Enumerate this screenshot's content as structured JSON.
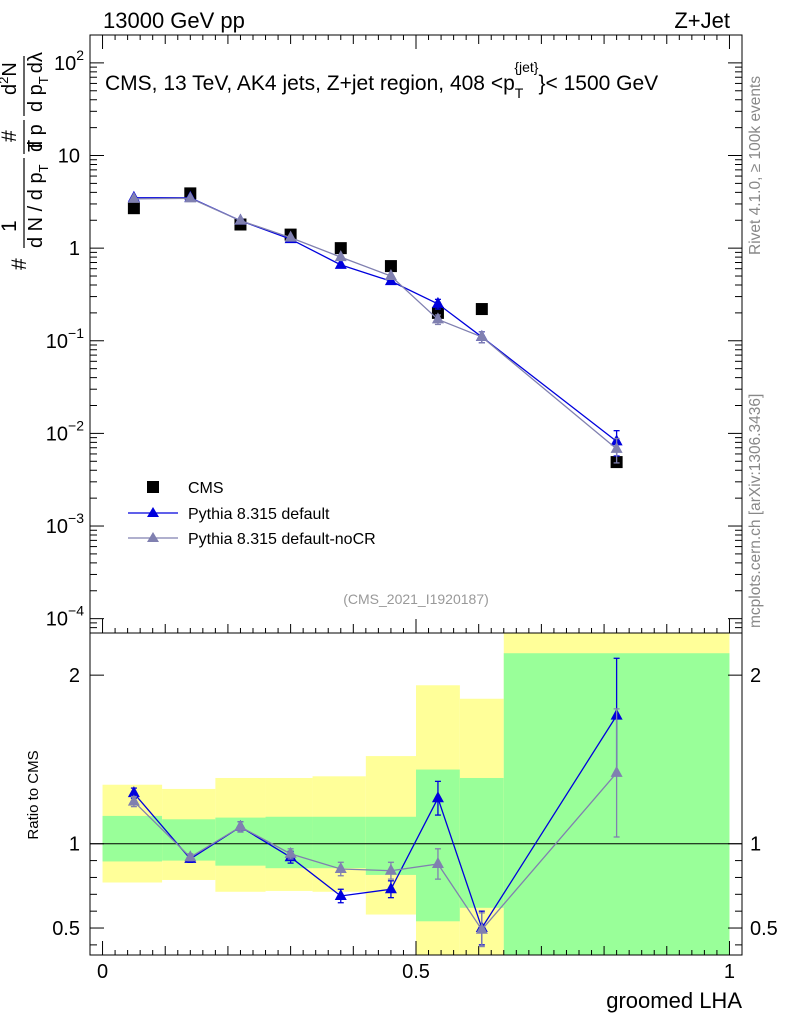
{
  "header": {
    "left": "13000 GeV pp",
    "right": "Z+Jet"
  },
  "side_labels": {
    "rivet": "Rivet 4.1.0, ≥ 100k events",
    "mcplots": "mcplots.cern.ch [arXiv:1306.3436]"
  },
  "chart_data": [
    {
      "type": "line",
      "panel": "main",
      "title": "CMS, 13 TeV, AK4 jets, Z+jet region, 408 <p_T^{jet}< 1500 GeV",
      "title_parts": {
        "pre": "CMS, 13 TeV, AK4 jets, Z+jet region, 408 <p",
        "sub": "T",
        "sup": "{jet}",
        "post": "}< 1500 GeV"
      },
      "reference": "(CMS_2021_I1920187)",
      "ylabel_parts": {
        "hash": "#",
        "one": "1",
        "denom": "d N / d p",
        "denom_sub": "T",
        "num_frac_top": "#",
        "num_frac_bot": "d p",
        "num_frac_bot_sub": "T",
        "d2n": "d",
        "d2n_sup": "2",
        "d2n_post": "N",
        "dlambda": "dλ"
      },
      "yscale": "log",
      "ylim": [
        7e-05,
        200
      ],
      "xlim": [
        -0.02,
        1.02
      ],
      "yticks": [
        {
          "value": 0.0001,
          "base": "10",
          "exp": "−4"
        },
        {
          "value": 0.001,
          "base": "10",
          "exp": "−3"
        },
        {
          "value": 0.01,
          "base": "10",
          "exp": "−2"
        },
        {
          "value": 0.1,
          "base": "10",
          "exp": "−1"
        },
        {
          "value": 1,
          "base": "1",
          "exp": ""
        },
        {
          "value": 10,
          "base": "10",
          "exp": ""
        },
        {
          "value": 100,
          "base": "10",
          "exp": "2"
        }
      ],
      "legend_position": "bottom-left",
      "series": [
        {
          "name": "CMS",
          "color": "#000000",
          "marker": "square",
          "x": [
            0.05,
            0.14,
            0.22,
            0.3,
            0.38,
            0.46,
            0.535,
            0.605,
            0.82
          ],
          "y": [
            2.7,
            3.9,
            1.8,
            1.4,
            1.0,
            0.64,
            0.2,
            0.22,
            0.0049
          ]
        },
        {
          "name": "Pythia 8.315 default",
          "color": "#0000dd",
          "marker": "triangle",
          "x": [
            0.05,
            0.14,
            0.22,
            0.3,
            0.38,
            0.46,
            0.535,
            0.605,
            0.82
          ],
          "y": [
            3.5,
            3.5,
            1.98,
            1.25,
            0.66,
            0.44,
            0.25,
            0.11,
            0.0082
          ],
          "err": [
            0,
            0,
            0,
            0,
            0,
            0,
            0.03,
            0.015,
            0.0025
          ]
        },
        {
          "name": "Pythia 8.315 default-noCR",
          "color": "#8080b0",
          "marker": "triangle",
          "x": [
            0.05,
            0.14,
            0.22,
            0.3,
            0.38,
            0.46,
            0.535,
            0.605,
            0.82
          ],
          "y": [
            3.4,
            3.45,
            1.98,
            1.3,
            0.8,
            0.5,
            0.17,
            0.11,
            0.0068
          ],
          "err": [
            0,
            0,
            0,
            0,
            0,
            0,
            0.02,
            0.015,
            0.002
          ]
        }
      ]
    },
    {
      "type": "line",
      "panel": "ratio",
      "ylabel": "Ratio to CMS",
      "xlabel": "groomed LHA",
      "xlim": [
        -0.02,
        1.02
      ],
      "ylim": [
        0.34,
        2.25
      ],
      "xticks": [
        0,
        0.5,
        1
      ],
      "xtick_labels": [
        "0",
        "0.5",
        "1"
      ],
      "yticks": [
        0.5,
        1,
        2
      ],
      "ytick_labels": [
        "0.5",
        "1",
        "2"
      ],
      "reference_line": 1,
      "bands": [
        {
          "x0": 0.0,
          "x1": 0.095,
          "yellow": [
            0.77,
            1.35
          ],
          "green": [
            0.895,
            1.165
          ]
        },
        {
          "x0": 0.095,
          "x1": 0.18,
          "yellow": [
            0.785,
            1.325
          ],
          "green": [
            0.9,
            1.145
          ]
        },
        {
          "x0": 0.18,
          "x1": 0.26,
          "yellow": [
            0.715,
            1.39
          ],
          "green": [
            0.87,
            1.155
          ]
        },
        {
          "x0": 0.26,
          "x1": 0.335,
          "yellow": [
            0.72,
            1.39
          ],
          "green": [
            0.855,
            1.16
          ]
        },
        {
          "x0": 0.335,
          "x1": 0.42,
          "yellow": [
            0.715,
            1.4
          ],
          "green": [
            0.855,
            1.16
          ]
        },
        {
          "x0": 0.42,
          "x1": 0.5,
          "yellow": [
            0.58,
            1.52
          ],
          "green": [
            0.815,
            1.16
          ]
        },
        {
          "x0": 0.5,
          "x1": 0.57,
          "yellow": [
            0.34,
            1.94
          ],
          "green": [
            0.54,
            1.44
          ]
        },
        {
          "x0": 0.57,
          "x1": 0.64,
          "yellow": [
            0.34,
            1.86
          ],
          "green": [
            0.62,
            1.39
          ]
        },
        {
          "x0": 0.64,
          "x1": 1.0,
          "yellow": [
            0.34,
            2.25
          ],
          "green": [
            0.34,
            2.13
          ]
        }
      ],
      "series": [
        {
          "name": "Pythia 8.315 default",
          "color": "#0000dd",
          "x": [
            0.05,
            0.14,
            0.22,
            0.3,
            0.38,
            0.46,
            0.535,
            0.605,
            0.82
          ],
          "y": [
            1.3,
            0.91,
            1.1,
            0.92,
            0.69,
            0.73,
            1.27,
            0.5,
            1.76
          ],
          "err": [
            0.03,
            0.02,
            0.03,
            0.035,
            0.04,
            0.05,
            0.1,
            0.1,
            0.34
          ]
        },
        {
          "name": "Pythia 8.315 default-noCR",
          "color": "#8080b0",
          "x": [
            0.05,
            0.14,
            0.22,
            0.3,
            0.38,
            0.46,
            0.535,
            0.605,
            0.82
          ],
          "y": [
            1.25,
            0.92,
            1.1,
            0.94,
            0.85,
            0.84,
            0.88,
            0.49,
            1.42
          ],
          "err": [
            0.03,
            0.02,
            0.03,
            0.03,
            0.04,
            0.05,
            0.09,
            0.1,
            0.38
          ]
        }
      ]
    }
  ]
}
